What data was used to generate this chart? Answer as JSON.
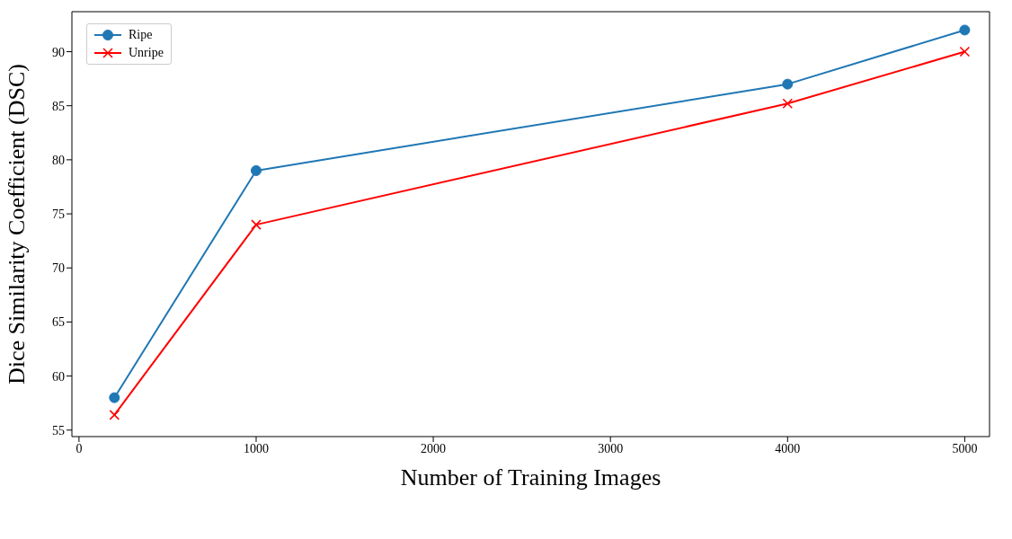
{
  "chart_data": {
    "type": "line",
    "xlabel": "Number of Training Images",
    "ylabel": "Dice Similarity Coefficient (DSC)",
    "x": [
      200,
      1000,
      4000,
      5000
    ],
    "series": [
      {
        "name": "Ripe",
        "color": "#1f77b4",
        "marker": "circle",
        "values": [
          58,
          79,
          87,
          92
        ]
      },
      {
        "name": "Unripe",
        "color": "#ff0000",
        "marker": "cross",
        "values": [
          56.4,
          74,
          85.2,
          90
        ]
      }
    ],
    "xlim": [
      -40,
      5140
    ],
    "xticks": [
      0,
      1000,
      2000,
      3000,
      4000,
      5000
    ],
    "ylim": [
      54.4,
      93.7
    ],
    "yticks": [
      55,
      60,
      65,
      70,
      75,
      80,
      85,
      90
    ],
    "legend": "top left",
    "grid": false,
    "line_style": "solid"
  }
}
